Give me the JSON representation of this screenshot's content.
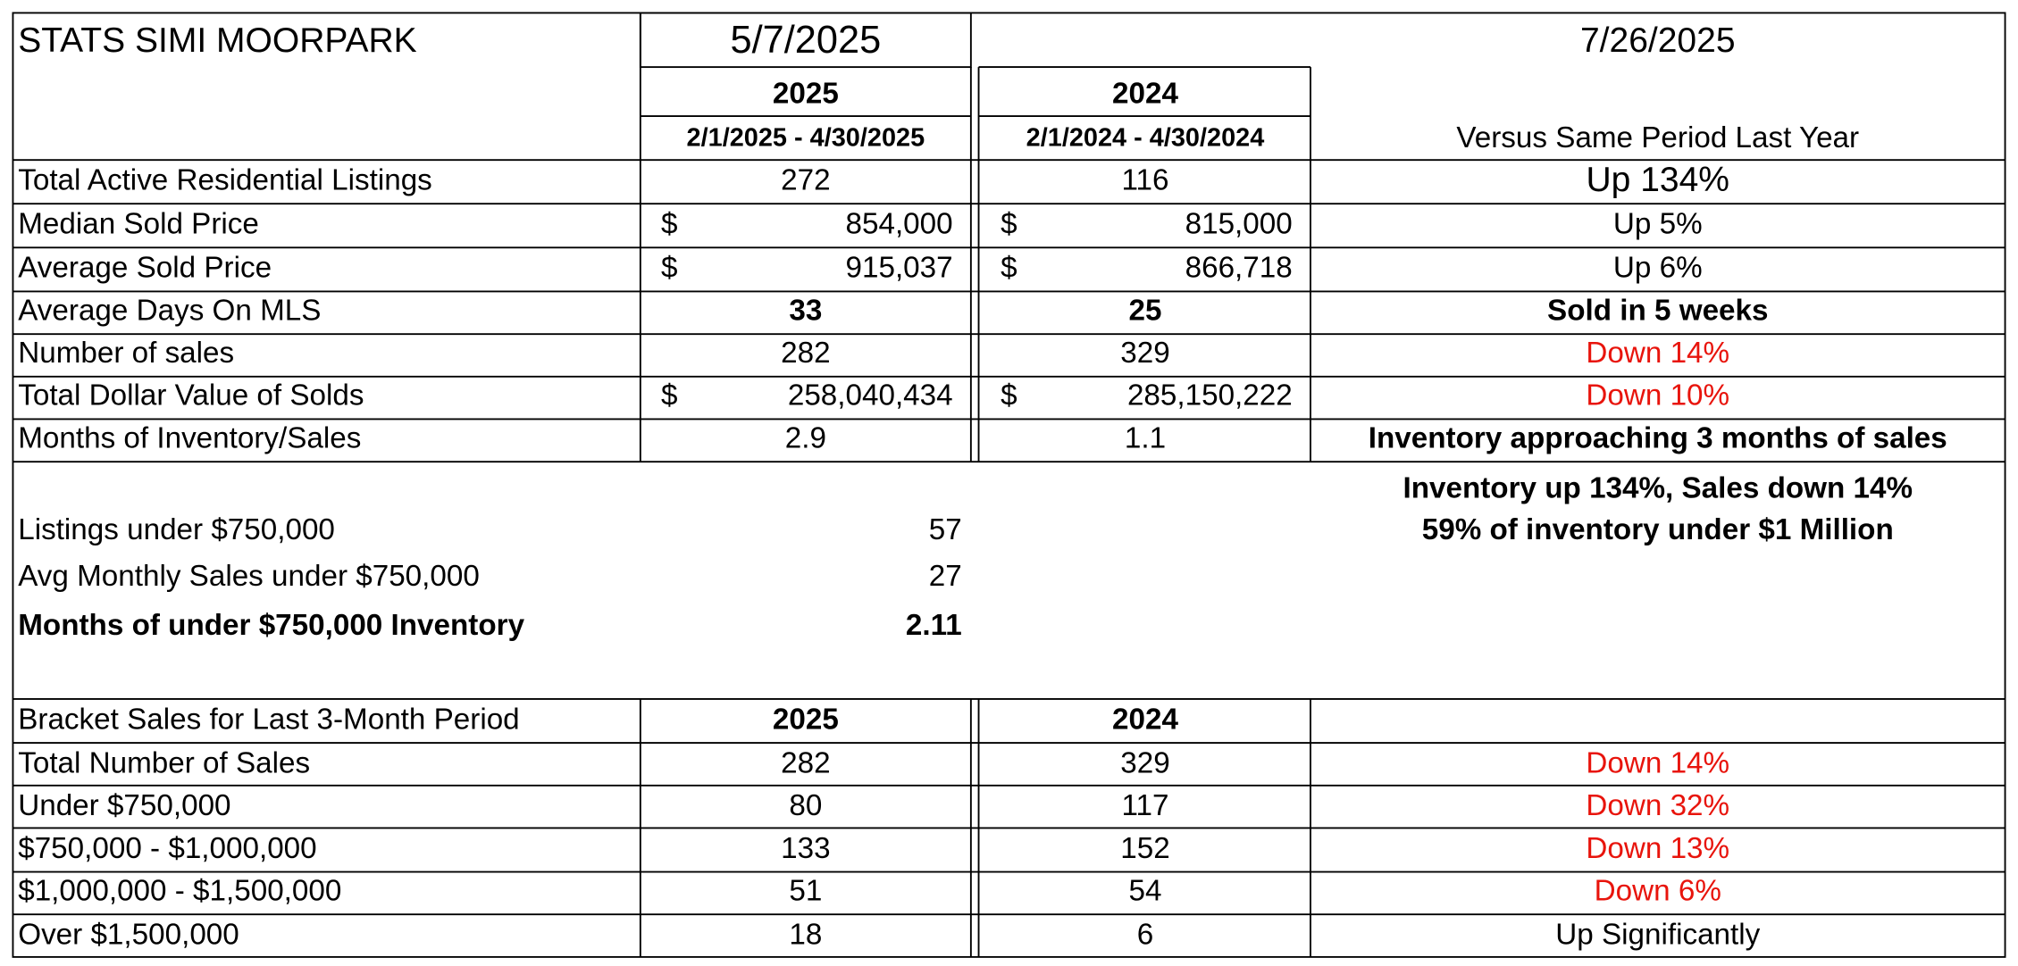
{
  "header": {
    "title": "STATS SIMI MOORPARK",
    "date": "5/7/2025",
    "date_right": "7/26/2025"
  },
  "table": {
    "columns": [
      "2025",
      "2024"
    ],
    "periods": [
      "2/1/2025 - 4/30/2025",
      "2/1/2024 - 4/30/2024"
    ],
    "comparison_header": "Versus Same Period Last Year",
    "rows": [
      [
        "Total Active Residential Listings",
        "272",
        "116",
        "Up 134%"
      ],
      [
        "Median Sold Price",
        "$",
        "854,000",
        "$",
        "815,000",
        "Up 5%"
      ],
      [
        "Average Sold Price",
        "$",
        "915,037",
        "$",
        "866,718",
        "Up 6%"
      ],
      [
        "Average Days On MLS",
        "33",
        "25",
        "Sold in 5 weeks"
      ],
      [
        "Number of sales",
        "282",
        "329",
        "Down 14%"
      ],
      [
        "Total Dollar Value of Solds",
        "$",
        "258,040,434",
        "$",
        "285,150,222",
        "Down 10%"
      ],
      [
        "Months of Inventory/Sales",
        "2.9",
        "1.1",
        "Inventory approaching 3 months of sales"
      ]
    ]
  },
  "summary": {
    "notes": [
      "Inventory up 134%, Sales down 14%",
      "59% of inventory under $1 Million"
    ],
    "rows": [
      [
        "Listings under $750,000",
        "57"
      ],
      [
        "Avg Monthly Sales under $750,000",
        "27"
      ],
      [
        "Months of under $750,000 Inventory",
        "2.11"
      ]
    ]
  },
  "brackets": {
    "header": [
      "Bracket Sales for Last 3-Month Period",
      "2025",
      "2024"
    ],
    "rows": [
      [
        "Total Number of Sales",
        "282",
        "329",
        "Down 14%"
      ],
      [
        "Under $750,000",
        "80",
        "117",
        "Down 32%"
      ],
      [
        "$750,000 - $1,000,000",
        "133",
        "152",
        "Down 13%"
      ],
      [
        "$1,000,000 - $1,500,000",
        "51",
        "54",
        "Down 6%"
      ],
      [
        "Over $1,500,000",
        "18",
        "6",
        "Up Significantly"
      ]
    ]
  }
}
